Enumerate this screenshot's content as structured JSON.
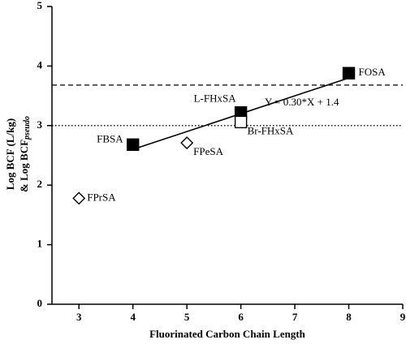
{
  "chart_data": {
    "type": "scatter",
    "x_label": "Fluorinated Carbon Chain Length",
    "y_label": [
      "Log BCF (L/kg)",
      "& Log BCF"
    ],
    "y_label_subscript": "pseudo",
    "xlim": [
      2.5,
      9
    ],
    "xticks": [
      3,
      4,
      5,
      6,
      7,
      8,
      9
    ],
    "ylim": [
      0,
      5
    ],
    "yticks": [
      0,
      1,
      2,
      3,
      4,
      5
    ],
    "points": [
      {
        "label": "FBSA",
        "x": 4,
        "y": 2.68,
        "marker": "filled-square"
      },
      {
        "label": "L-FHxSA",
        "x": 6,
        "y": 3.22,
        "marker": "filled-square"
      },
      {
        "label": "FOSA",
        "x": 8,
        "y": 3.88,
        "marker": "filled-square"
      },
      {
        "label": "Br-FHxSA",
        "x": 6,
        "y": 3.06,
        "marker": "open-square"
      },
      {
        "label": "FPeSA",
        "x": 5,
        "y": 2.71,
        "marker": "open-diamond"
      },
      {
        "label": "FPrSA",
        "x": 3,
        "y": 1.78,
        "marker": "open-diamond"
      }
    ],
    "fit": {
      "slope": 0.3,
      "intercept": 1.4,
      "x": [
        4,
        8
      ],
      "label": "Y = 0.30*X + 1.4"
    },
    "hlines": [
      {
        "y": 3.68,
        "style": "dashed"
      },
      {
        "y": 3.0,
        "style": "dotted"
      }
    ],
    "color": "#000000"
  }
}
